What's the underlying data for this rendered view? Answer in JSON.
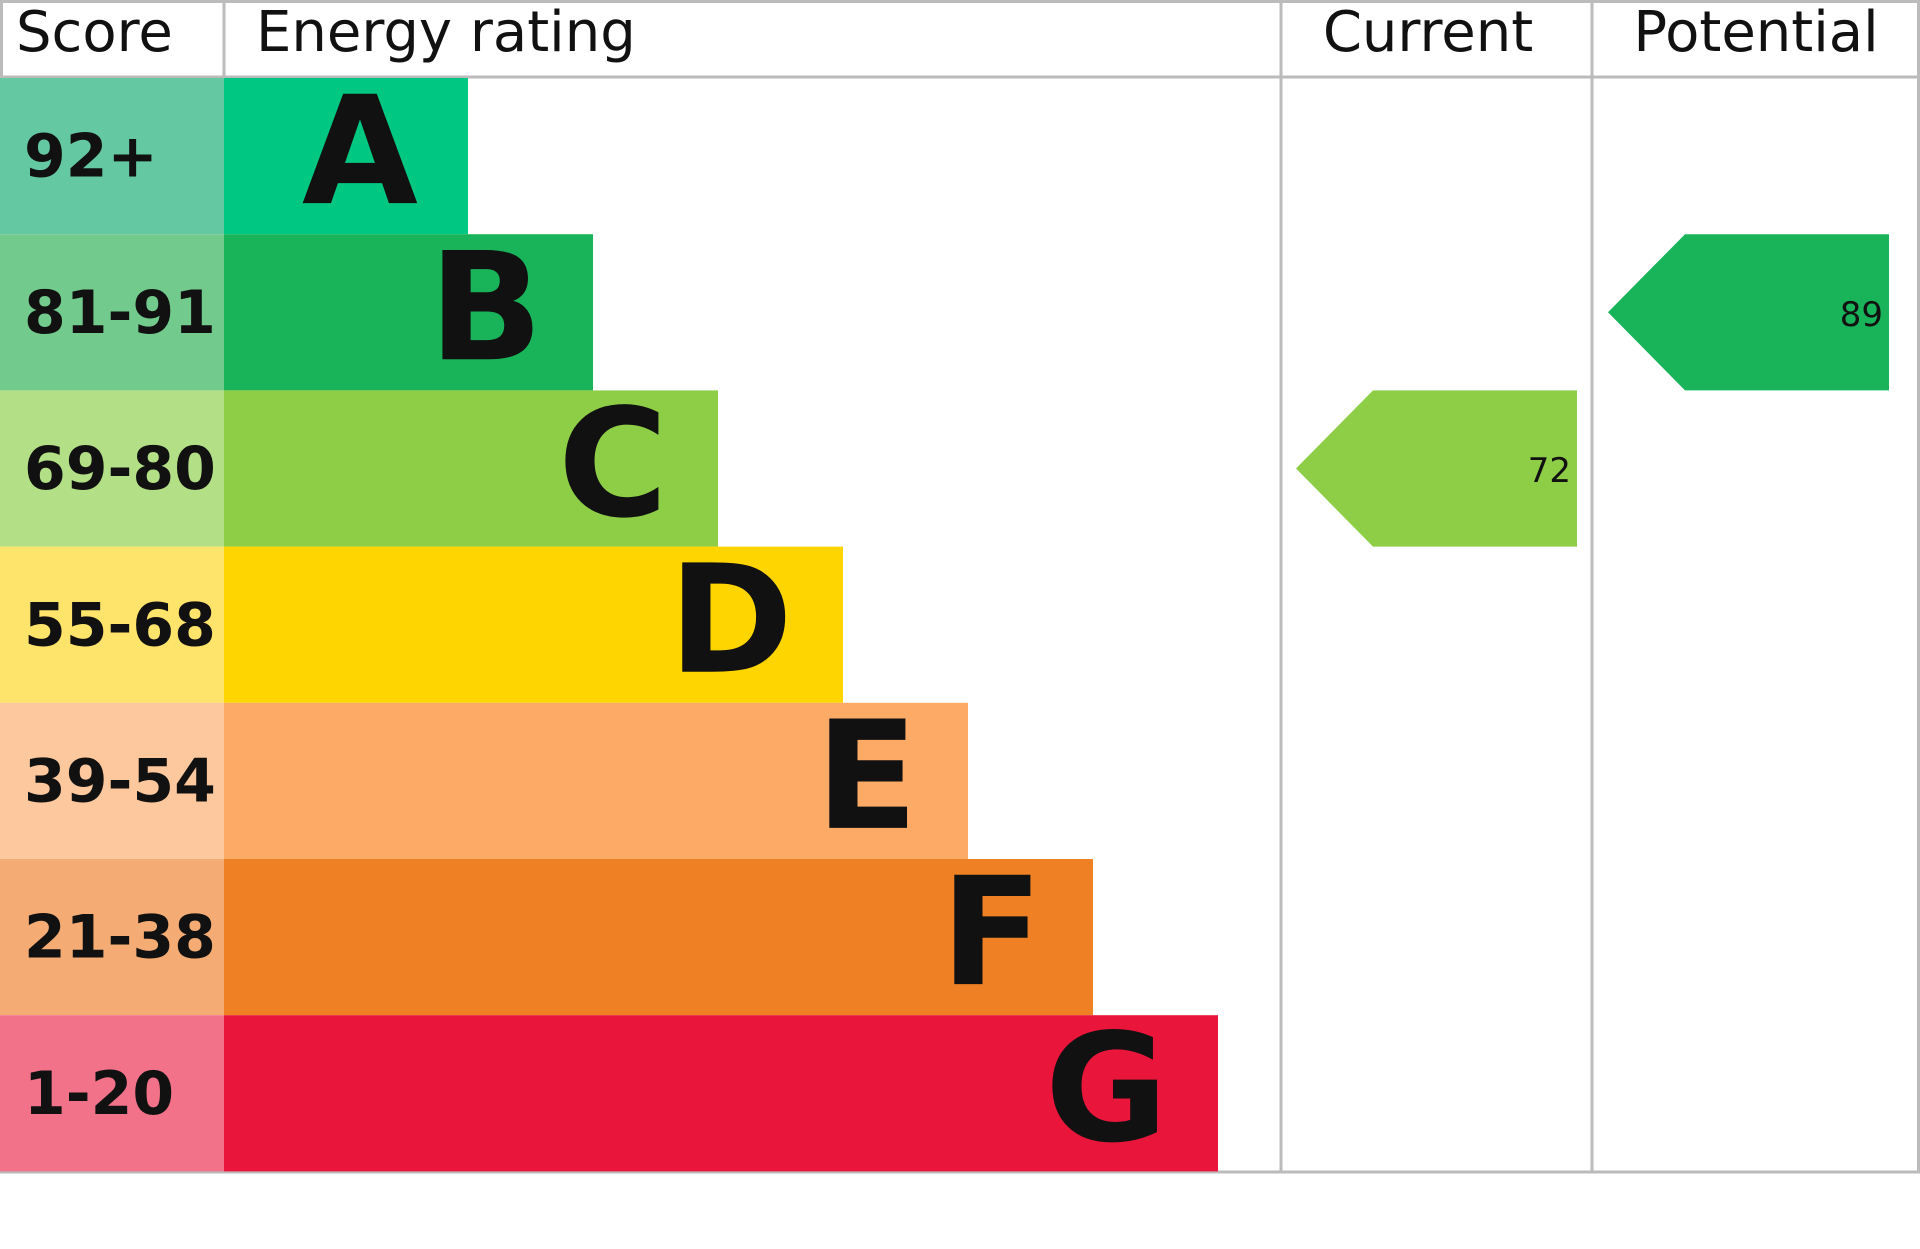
{
  "headers": {
    "score": "Score",
    "rating": "Energy rating",
    "current": "Current",
    "potential": "Potential"
  },
  "bands": [
    {
      "score": "92+",
      "letter": "A",
      "color": "#00c781",
      "score_color": "#64c8a3"
    },
    {
      "score": "81-91",
      "letter": "B",
      "color": "#19b459",
      "score_color": "#72cb8d"
    },
    {
      "score": "69-80",
      "letter": "C",
      "color": "#8dce46",
      "score_color": "#b3df86"
    },
    {
      "score": "55-68",
      "letter": "D",
      "color": "#ffd500",
      "score_color": "#fee46b"
    },
    {
      "score": "39-54",
      "letter": "E",
      "color": "#fcaa65",
      "score_color": "#fdc89d"
    },
    {
      "score": "21-38",
      "letter": "F",
      "color": "#ef8023",
      "score_color": "#f4ac74"
    },
    {
      "score": "1-20",
      "letter": "G",
      "color": "#e9153b",
      "score_color": "#f27289"
    }
  ],
  "current": {
    "value": 72
  },
  "potential": {
    "value": 89
  }
}
